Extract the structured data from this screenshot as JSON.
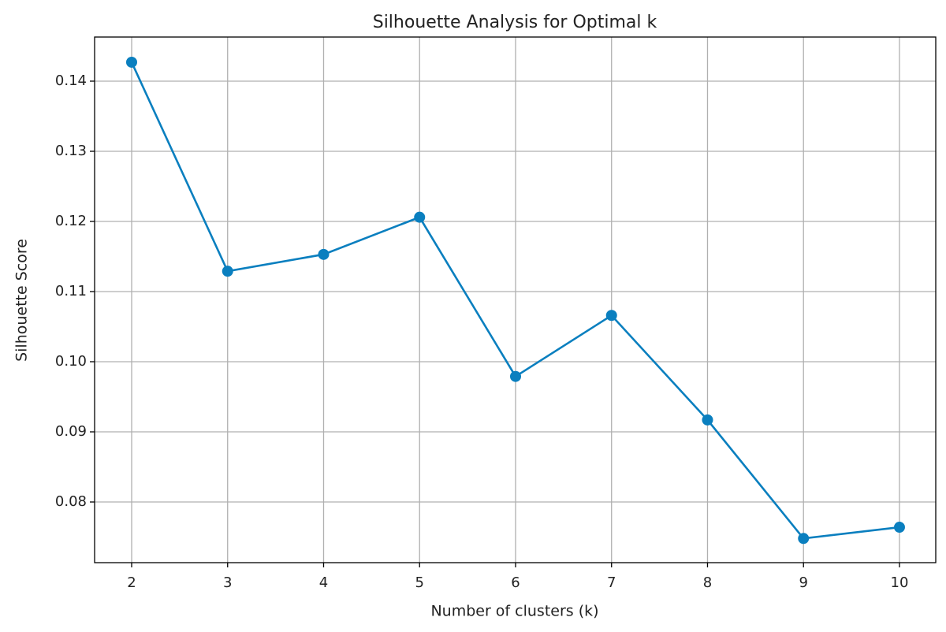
{
  "chart_data": {
    "type": "line",
    "title": "Silhouette Analysis for Optimal k",
    "x_label": "Number of clusters (k)",
    "y_label": "Silhouette Score",
    "x": [
      2,
      3,
      4,
      5,
      6,
      7,
      8,
      9,
      10
    ],
    "series": [
      {
        "name": "Silhouette Score",
        "color": "#0a7fbf",
        "values": [
          0.1427,
          0.1129,
          0.1153,
          0.1206,
          0.0979,
          0.1066,
          0.0917,
          0.0748,
          0.0764
        ]
      }
    ],
    "xlim": [
      1.614,
      10.378
    ],
    "ylim": [
      0.07135,
      0.14629
    ],
    "xticks": [
      2,
      3,
      4,
      5,
      6,
      7,
      8,
      9,
      10
    ],
    "yticks": [
      0.08,
      0.09,
      {
        "value": 0.1,
        "label": "0.10"
      },
      0.11,
      0.12,
      0.13,
      0.14
    ],
    "grid": true,
    "marker": "o"
  }
}
